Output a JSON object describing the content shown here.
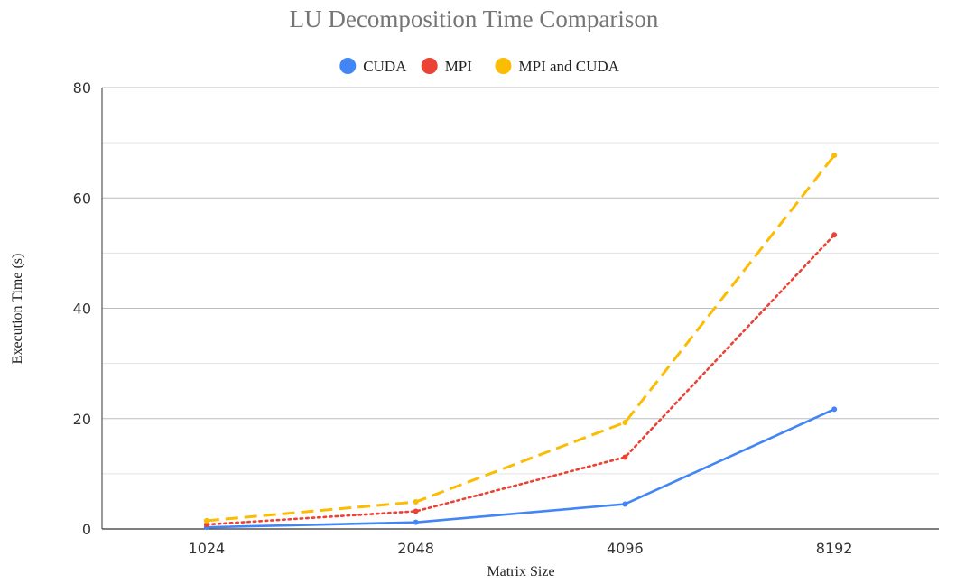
{
  "chart_data": {
    "type": "line",
    "title": "LU Decomposition Time Comparison",
    "xlabel": "Matrix Size",
    "ylabel": "Execution Time (s)",
    "categories": [
      "1024",
      "2048",
      "4096",
      "8192"
    ],
    "ylim": [
      0,
      80
    ],
    "y_ticks": [
      "0",
      "20",
      "40",
      "60",
      "80"
    ],
    "grid": true,
    "legend_position": "top",
    "series": [
      {
        "name": "CUDA",
        "color": "#4285f4",
        "line_style": "solid",
        "values": [
          0.3,
          1.2,
          4.5,
          21.7
        ]
      },
      {
        "name": "MPI",
        "color": "#ea4335",
        "line_style": "dotted",
        "values": [
          0.8,
          3.2,
          13.0,
          53.3
        ]
      },
      {
        "name": "MPI and CUDA",
        "color": "#fbbc04",
        "line_style": "dashed",
        "values": [
          1.5,
          4.9,
          19.3,
          67.7
        ]
      }
    ]
  }
}
